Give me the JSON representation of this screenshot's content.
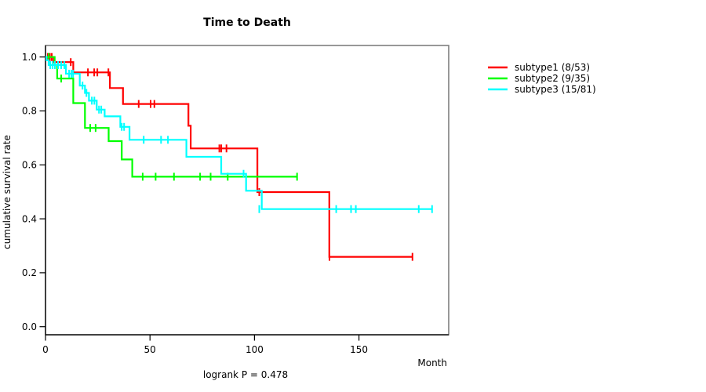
{
  "title": "Time to Death",
  "x_axis": {
    "label": "Month",
    "ticks": [
      0,
      50,
      100,
      150
    ]
  },
  "y_axis": {
    "label": "cumulative survival rate",
    "ticks": [
      0.0,
      0.2,
      0.4,
      0.6,
      0.8,
      1.0
    ]
  },
  "annotation": "logrank P = 0.478",
  "chart_data": {
    "type": "line",
    "subtype": "kaplan-meier-step-curves",
    "title": "Time to Death",
    "xlabel": "Month",
    "ylabel": "cumulative survival rate",
    "annotation": "logrank P = 0.478",
    "xlim": [
      0,
      193
    ],
    "ylim": [
      0,
      1.04
    ],
    "x_ticks": [
      0,
      50,
      100,
      150
    ],
    "y_ticks": [
      0.0,
      0.2,
      0.4,
      0.6,
      0.8,
      1.0
    ],
    "grid": false,
    "legend_position": "right-outside",
    "series": [
      {
        "name": "subtype1",
        "label": "subtype1 (8/53)",
        "events": "8/53",
        "color": "#ff0000",
        "end_month": 175.6,
        "steps": [
          [
            0,
            1.0
          ],
          [
            3.9,
            0.981
          ],
          [
            13.3,
            0.943
          ],
          [
            30.8,
            0.885
          ],
          [
            37.1,
            0.826
          ],
          [
            68.4,
            0.745
          ],
          [
            69.5,
            0.661
          ],
          [
            101.4,
            0.499
          ],
          [
            135.8,
            0.259
          ]
        ],
        "censor_marks": [
          [
            1.1,
            1.0
          ],
          [
            2.1,
            1.0
          ],
          [
            3.0,
            1.0
          ],
          [
            12.1,
            0.981
          ],
          [
            20.3,
            0.943
          ],
          [
            23.3,
            0.943
          ],
          [
            24.8,
            0.943
          ],
          [
            30.1,
            0.943
          ],
          [
            44.6,
            0.826
          ],
          [
            50.3,
            0.826
          ],
          [
            52.1,
            0.826
          ],
          [
            83.2,
            0.661
          ],
          [
            84.1,
            0.661
          ],
          [
            86.6,
            0.661
          ],
          [
            102.3,
            0.499
          ],
          [
            135.9,
            0.259
          ],
          [
            175.6,
            0.259
          ]
        ]
      },
      {
        "name": "subtype2",
        "label": "subtype2 (9/35)",
        "events": "9/35",
        "color": "#00ff00",
        "end_month": 120.4,
        "steps": [
          [
            0,
            1.0
          ],
          [
            4.4,
            0.971
          ],
          [
            5.6,
            0.92
          ],
          [
            13.3,
            0.829
          ],
          [
            18.9,
            0.737
          ],
          [
            30.2,
            0.688
          ],
          [
            36.5,
            0.62
          ],
          [
            41.5,
            0.556
          ]
        ],
        "censor_marks": [
          [
            1.5,
            1.0
          ],
          [
            7.5,
            0.92
          ],
          [
            21.4,
            0.737
          ],
          [
            24.0,
            0.737
          ],
          [
            46.5,
            0.556
          ],
          [
            52.7,
            0.556
          ],
          [
            61.5,
            0.556
          ],
          [
            74.0,
            0.556
          ],
          [
            79.0,
            0.556
          ],
          [
            87.2,
            0.556
          ],
          [
            120.4,
            0.556
          ]
        ]
      },
      {
        "name": "subtype3",
        "label": "subtype3 (15/81)",
        "events": "15/81",
        "color": "#00ffff",
        "end_month": 185.0,
        "steps": [
          [
            0,
            1.0
          ],
          [
            0.5,
            0.988
          ],
          [
            1.5,
            0.97
          ],
          [
            9.8,
            0.938
          ],
          [
            16.4,
            0.894
          ],
          [
            18.9,
            0.867
          ],
          [
            20.8,
            0.838
          ],
          [
            24.5,
            0.805
          ],
          [
            28.3,
            0.78
          ],
          [
            35.8,
            0.741
          ],
          [
            40.2,
            0.693
          ],
          [
            67.4,
            0.63
          ],
          [
            84.1,
            0.567
          ],
          [
            96.0,
            0.504
          ],
          [
            103.5,
            0.436
          ]
        ],
        "censor_marks": [
          [
            2.3,
            0.97
          ],
          [
            3.4,
            0.97
          ],
          [
            4.5,
            0.97
          ],
          [
            6.0,
            0.97
          ],
          [
            7.5,
            0.97
          ],
          [
            9.0,
            0.97
          ],
          [
            11.3,
            0.938
          ],
          [
            12.4,
            0.938
          ],
          [
            13.2,
            0.938
          ],
          [
            17.7,
            0.894
          ],
          [
            19.6,
            0.867
          ],
          [
            22.2,
            0.838
          ],
          [
            23.4,
            0.838
          ],
          [
            25.6,
            0.805
          ],
          [
            26.7,
            0.805
          ],
          [
            36.5,
            0.741
          ],
          [
            37.6,
            0.741
          ],
          [
            47.0,
            0.693
          ],
          [
            55.3,
            0.693
          ],
          [
            58.6,
            0.693
          ],
          [
            94.8,
            0.567
          ],
          [
            102.3,
            0.436
          ],
          [
            139.1,
            0.436
          ],
          [
            146.2,
            0.436
          ],
          [
            148.5,
            0.436
          ],
          [
            178.6,
            0.436
          ],
          [
            185.0,
            0.436
          ]
        ]
      }
    ]
  }
}
